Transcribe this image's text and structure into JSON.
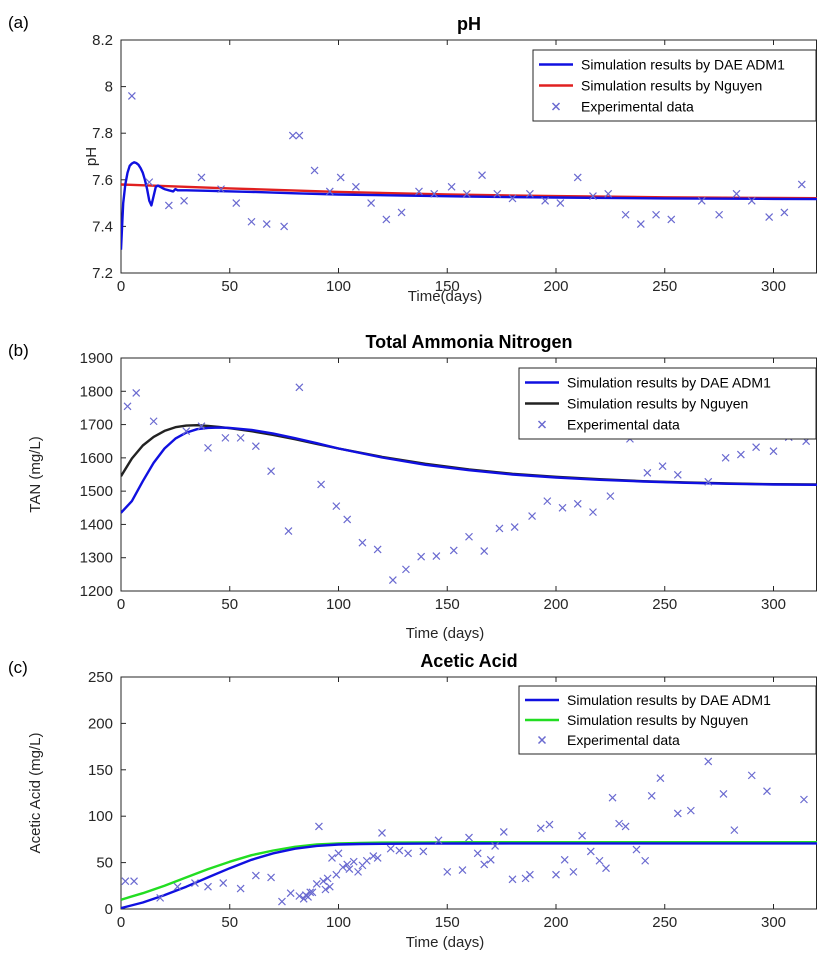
{
  "colors": {
    "dae": "#1010e0",
    "nguyen_ph": "#e02020",
    "nguyen_tan": "#222222",
    "nguyen_acetic": "#22dd22",
    "exp": "#6a6ad0"
  },
  "chart_data": [
    {
      "type": "line",
      "panel_label": "(a)",
      "title": "pH",
      "xlabel": "Time(days)",
      "ylabel": "pH",
      "xlim": [
        0,
        320
      ],
      "ylim": [
        7.2,
        8.2
      ],
      "xticks": [
        0,
        50,
        100,
        150,
        200,
        250,
        300
      ],
      "yticks": [
        7.2,
        7.4,
        7.6,
        7.8,
        8.0,
        8.2
      ],
      "ytick_labels": [
        "7.2",
        "7.4",
        "7.6",
        "7.8",
        "8",
        "8.2"
      ],
      "grid": false,
      "legend_position": "top-right",
      "series": [
        {
          "name": "Simulation results by DAE ADM1",
          "kind": "line",
          "color_key": "dae",
          "x": [
            0,
            1,
            2,
            3,
            4,
            5,
            6,
            7,
            8,
            9,
            10,
            11,
            12,
            13,
            14,
            15,
            16,
            17,
            18,
            19,
            20,
            22,
            24,
            25,
            26,
            28,
            30,
            40,
            60,
            80,
            100,
            130,
            160,
            200,
            250,
            300,
            320
          ],
          "y": [
            7.3,
            7.5,
            7.58,
            7.63,
            7.66,
            7.67,
            7.675,
            7.672,
            7.665,
            7.65,
            7.63,
            7.6,
            7.56,
            7.51,
            7.49,
            7.53,
            7.57,
            7.575,
            7.57,
            7.565,
            7.56,
            7.555,
            7.55,
            7.56,
            7.555,
            7.555,
            7.555,
            7.553,
            7.548,
            7.542,
            7.537,
            7.532,
            7.528,
            7.524,
            7.52,
            7.518,
            7.517
          ]
        },
        {
          "name": "Simulation results by Nguyen",
          "kind": "line",
          "color_key": "nguyen_ph",
          "x": [
            0,
            50,
            100,
            150,
            200,
            250,
            300,
            320
          ],
          "y": [
            7.58,
            7.563,
            7.548,
            7.537,
            7.53,
            7.525,
            7.522,
            7.521
          ]
        },
        {
          "name": "Experimental data",
          "kind": "scatter",
          "color_key": "exp",
          "x": [
            5,
            13,
            22,
            29,
            37,
            46,
            53,
            60,
            67,
            75,
            79,
            82,
            89,
            96,
            101,
            108,
            115,
            122,
            129,
            137,
            144,
            152,
            159,
            166,
            173,
            180,
            188,
            195,
            202,
            210,
            217,
            224,
            232,
            239,
            246,
            253,
            267,
            275,
            283,
            290,
            298,
            305,
            313
          ],
          "y": [
            7.96,
            7.59,
            7.49,
            7.51,
            7.61,
            7.56,
            7.5,
            7.42,
            7.41,
            7.4,
            7.79,
            7.79,
            7.64,
            7.55,
            7.61,
            7.57,
            7.5,
            7.43,
            7.46,
            7.55,
            7.54,
            7.57,
            7.54,
            7.62,
            7.54,
            7.52,
            7.54,
            7.51,
            7.5,
            7.61,
            7.53,
            7.54,
            7.45,
            7.41,
            7.45,
            7.43,
            7.51,
            7.45,
            7.54,
            7.51,
            7.44,
            7.46,
            7.58
          ]
        }
      ]
    },
    {
      "type": "line",
      "panel_label": "(b)",
      "title": "Total Ammonia Nitrogen",
      "xlabel": "Time (days)",
      "ylabel": "TAN (mg/L)",
      "xlim": [
        0,
        320
      ],
      "ylim": [
        1200,
        1900
      ],
      "xticks": [
        0,
        50,
        100,
        150,
        200,
        250,
        300
      ],
      "yticks": [
        1200,
        1300,
        1400,
        1500,
        1600,
        1700,
        1800,
        1900
      ],
      "ytick_labels": [
        "1200",
        "1300",
        "1400",
        "1500",
        "1600",
        "1700",
        "1800",
        "1900"
      ],
      "grid": false,
      "legend_position": "top-right",
      "series": [
        {
          "name": "Simulation results by DAE ADM1",
          "kind": "line",
          "color_key": "dae",
          "x": [
            0,
            5,
            10,
            15,
            20,
            25,
            30,
            35,
            40,
            45,
            50,
            60,
            70,
            80,
            90,
            100,
            120,
            140,
            160,
            180,
            200,
            220,
            240,
            260,
            280,
            300,
            320
          ],
          "y": [
            1435,
            1470,
            1530,
            1585,
            1628,
            1658,
            1676,
            1686,
            1690,
            1691,
            1690,
            1684,
            1673,
            1659,
            1644,
            1628,
            1601,
            1579,
            1563,
            1550,
            1541,
            1534,
            1529,
            1525,
            1522,
            1520,
            1519
          ]
        },
        {
          "name": "Simulation results by Nguyen",
          "kind": "line",
          "color_key": "nguyen_tan",
          "x": [
            0,
            5,
            10,
            15,
            20,
            25,
            30,
            35,
            40,
            45,
            50,
            60,
            70,
            80,
            90,
            100,
            120,
            140,
            160,
            180,
            200,
            220,
            240,
            260,
            280,
            300,
            320
          ],
          "y": [
            1545,
            1598,
            1637,
            1663,
            1681,
            1692,
            1697,
            1698,
            1696,
            1693,
            1689,
            1680,
            1669,
            1656,
            1642,
            1628,
            1603,
            1582,
            1565,
            1552,
            1543,
            1536,
            1530,
            1526,
            1523,
            1521,
            1520
          ]
        },
        {
          "name": "Experimental data",
          "kind": "scatter",
          "color_key": "exp",
          "x": [
            3,
            7,
            15,
            30,
            37,
            40,
            48,
            55,
            62,
            69,
            77,
            82,
            92,
            99,
            104,
            111,
            118,
            125,
            131,
            138,
            145,
            153,
            160,
            167,
            174,
            181,
            189,
            196,
            203,
            210,
            217,
            225,
            234,
            242,
            249,
            256,
            270,
            278,
            285,
            292,
            300,
            307,
            315
          ],
          "y": [
            1755,
            1795,
            1710,
            1680,
            1695,
            1630,
            1660,
            1660,
            1635,
            1560,
            1380,
            1812,
            1520,
            1455,
            1415,
            1345,
            1325,
            1233,
            1265,
            1303,
            1305,
            1322,
            1363,
            1320,
            1388,
            1392,
            1425,
            1470,
            1450,
            1462,
            1437,
            1485,
            1657,
            1555,
            1575,
            1549,
            1528,
            1600,
            1610,
            1632,
            1620,
            1662,
            1650
          ]
        }
      ]
    },
    {
      "type": "line",
      "panel_label": "(c)",
      "title": "Acetic Acid",
      "xlabel": "Time (days)",
      "ylabel": "Acetic Acid (mg/L)",
      "xlim": [
        0,
        320
      ],
      "ylim": [
        0,
        250
      ],
      "xticks": [
        0,
        50,
        100,
        150,
        200,
        250,
        300
      ],
      "yticks": [
        0,
        50,
        100,
        150,
        200,
        250
      ],
      "ytick_labels": [
        "0",
        "50",
        "100",
        "150",
        "200",
        "250"
      ],
      "grid": false,
      "legend_position": "top-right",
      "series": [
        {
          "name": "Simulation results by DAE ADM1",
          "kind": "line",
          "color_key": "dae",
          "x": [
            0,
            10,
            20,
            30,
            40,
            50,
            60,
            70,
            80,
            90,
            100,
            110,
            120,
            140,
            160,
            200,
            250,
            320
          ],
          "y": [
            1,
            7,
            15,
            24,
            34,
            44,
            53,
            60,
            65,
            68,
            69.5,
            70,
            70.3,
            70.5,
            70.6,
            70.7,
            70.7,
            70.7
          ]
        },
        {
          "name": "Simulation results by Nguyen",
          "kind": "line",
          "color_key": "nguyen_acetic",
          "x": [
            0,
            10,
            20,
            30,
            40,
            50,
            60,
            70,
            80,
            90,
            100,
            110,
            120,
            140,
            160,
            200,
            250,
            320
          ],
          "y": [
            10,
            17,
            25,
            34,
            43,
            51,
            58,
            63,
            67,
            69.5,
            70.7,
            71.2,
            71.5,
            71.8,
            72,
            72,
            72,
            72
          ]
        },
        {
          "name": "Experimental data",
          "kind": "scatter",
          "color_key": "exp",
          "x": [
            2,
            6,
            18,
            26,
            34,
            40,
            47,
            55,
            62,
            69,
            74,
            78,
            82,
            84,
            85,
            86,
            87,
            88,
            90,
            91,
            93,
            94,
            95,
            96,
            97,
            99,
            100,
            102,
            104,
            105,
            107,
            109,
            111,
            113,
            116,
            118,
            120,
            124,
            128,
            132,
            139,
            146,
            150,
            157,
            160,
            164,
            167,
            170,
            172,
            176,
            180,
            186,
            188,
            193,
            197,
            200,
            204,
            208,
            212,
            216,
            220,
            223,
            226,
            229,
            232,
            237,
            241,
            244,
            248,
            256,
            262,
            270,
            277,
            282,
            290,
            297,
            314
          ],
          "y": [
            30,
            30,
            12,
            24,
            28,
            24,
            28,
            22,
            36,
            34,
            8,
            17,
            14,
            11,
            15,
            13,
            18,
            18,
            27,
            89,
            30,
            21,
            33,
            24,
            55,
            37,
            60,
            45,
            48,
            43,
            51,
            40,
            47,
            52,
            57,
            55,
            82,
            65,
            63,
            60,
            62,
            74,
            40,
            42,
            77,
            60,
            48,
            53,
            68,
            83,
            32,
            33,
            37,
            87,
            91,
            37,
            53,
            40,
            79,
            62,
            52,
            44,
            120,
            92,
            89,
            64,
            52,
            122,
            141,
            103,
            106,
            159,
            124,
            85,
            144,
            127,
            118
          ]
        }
      ]
    }
  ]
}
